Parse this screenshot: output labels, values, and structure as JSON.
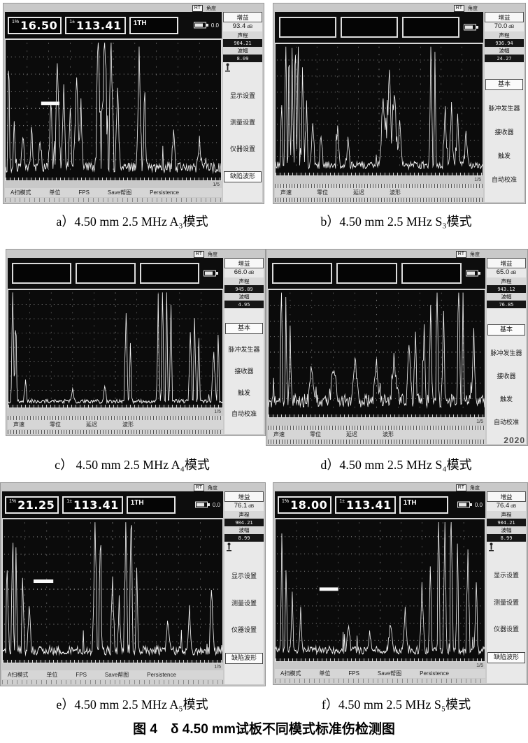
{
  "colors": {
    "scope_bg": "#0b0b0b",
    "trace": "#f2f2f2",
    "panel_frame": "#c9c9c9"
  },
  "captions": [
    "a）4.50 mm 2.5 MHz A₃模式",
    "b）4.50 mm 2.5 MHz S₃模式",
    "c） 4.50 mm 2.5 MHz A₄模式",
    "d）4.50 mm 2.5 MHz S₄模式",
    "e）4.50 mm 2.5 MHz A₅模式",
    "f）4.50 mm 2.5 MHz S₅模式"
  ],
  "title": "图 4　δ 4.50 mm试板不同模式标准伤检测图",
  "panels": [
    {
      "id": "a",
      "style": "A",
      "corner": {
        "box": "RT",
        "label": "角度"
      },
      "topbar": {
        "boxes": [
          {
            "prefix": "1%",
            "value": "16.50"
          },
          {
            "prefix": "1±",
            "value": "113.41"
          }
        ],
        "channel": "1TH",
        "small_value": "0.0"
      },
      "gain": {
        "label": "增益",
        "value": "93.4",
        "unit": "dB"
      },
      "readouts": [
        {
          "label": "声程",
          "value": "904.21"
        },
        {
          "label": "波幅",
          "value": "8.09"
        }
      ],
      "menu": {
        "items": [
          "显示设置",
          "测量设置",
          "仪器设置",
          "缺陷波形"
        ],
        "active": 3
      },
      "softkeys": [
        "A扫模式",
        "单位",
        "FPS",
        "Save帮图",
        "Persistence"
      ],
      "page_indicator": "1/5",
      "waveform": {
        "noise": 0.11,
        "peaks": [
          [
            0.015,
            1,
            0.006
          ],
          [
            0.04,
            0.35,
            0.01
          ],
          [
            0.08,
            0.25,
            0.012
          ],
          [
            0.12,
            0.3,
            0.01
          ],
          [
            0.16,
            0.22,
            0.01
          ],
          [
            0.21,
            0.5,
            0.012
          ],
          [
            0.24,
            0.78,
            0.014
          ],
          [
            0.27,
            0.6,
            0.012
          ],
          [
            0.3,
            0.45,
            0.01
          ],
          [
            0.33,
            0.7,
            0.012
          ],
          [
            0.35,
            0.5,
            0.01
          ],
          [
            0.43,
            1.05,
            0.014
          ],
          [
            0.46,
            1.1,
            0.016
          ],
          [
            0.49,
            1.05,
            0.012
          ],
          [
            0.52,
            0.6,
            0.01
          ],
          [
            0.62,
            0.92,
            0.01
          ],
          [
            0.645,
            0.7,
            0.008
          ],
          [
            0.78,
            0.28,
            0.01
          ],
          [
            0.9,
            0.2,
            0.012
          ]
        ],
        "gate": [
          0.165,
          0.44,
          0.085
        ]
      }
    },
    {
      "id": "b",
      "style": "B",
      "corner": {
        "box": "RT",
        "label": "角度"
      },
      "gain": {
        "label": "增益",
        "value": "70.0",
        "unit": "dB"
      },
      "readouts": [
        {
          "label": "声程",
          "value": "936.94"
        },
        {
          "label": "波幅",
          "value": "24.27"
        }
      ],
      "menu": {
        "items": [
          "基本",
          "脉冲发生器",
          "接收器",
          "触发",
          "自动校准"
        ],
        "active": 0
      },
      "softkeys": [
        "声速",
        "零位",
        "延迟",
        "波形"
      ],
      "page_indicator": "1/5",
      "waveform": {
        "noise": 0.09,
        "peaks": [
          [
            0.03,
            0.5,
            0.008
          ],
          [
            0.05,
            1.1,
            0.007
          ],
          [
            0.065,
            1.1,
            0.006
          ],
          [
            0.08,
            0.9,
            0.007
          ],
          [
            0.095,
            1.1,
            0.006
          ],
          [
            0.11,
            1.05,
            0.007
          ],
          [
            0.13,
            0.8,
            0.008
          ],
          [
            0.15,
            0.5,
            0.008
          ],
          [
            0.18,
            0.35,
            0.01
          ],
          [
            0.22,
            0.25,
            0.012
          ],
          [
            0.3,
            0.3,
            0.01
          ],
          [
            0.35,
            0.2,
            0.01
          ],
          [
            0.52,
            0.55,
            0.02
          ],
          [
            0.55,
            0.75,
            0.018
          ],
          [
            0.575,
            0.6,
            0.015
          ],
          [
            0.6,
            0.35,
            0.015
          ],
          [
            0.75,
            1.1,
            0.008
          ],
          [
            0.77,
            0.9,
            0.006
          ],
          [
            0.82,
            0.45,
            0.012
          ],
          [
            0.85,
            0.5,
            0.01
          ],
          [
            0.88,
            0.4,
            0.012
          ],
          [
            0.92,
            0.3,
            0.012
          ]
        ],
        "gate": null
      }
    },
    {
      "id": "c",
      "style": "B",
      "corner": {
        "box": "RT",
        "label": "角度"
      },
      "gain": {
        "label": "增益",
        "value": "66.0",
        "unit": "dB"
      },
      "readouts": [
        {
          "label": "声程",
          "value": "945.89"
        },
        {
          "label": "波幅",
          "value": "4.95"
        }
      ],
      "menu": {
        "items": [
          "基本",
          "脉冲发生器",
          "接收器",
          "触发",
          "自动校准"
        ],
        "active": 0
      },
      "softkeys": [
        "声速",
        "零位",
        "延迟",
        "波形"
      ],
      "page_indicator": "1/5",
      "waveform": {
        "noise": 0.05,
        "peaks": [
          [
            0.02,
            1.1,
            0.007
          ],
          [
            0.035,
            0.8,
            0.006
          ],
          [
            0.08,
            0.2,
            0.01
          ],
          [
            0.3,
            0.12,
            0.01
          ],
          [
            0.45,
            0.15,
            0.01
          ],
          [
            0.55,
            0.78,
            0.01
          ],
          [
            0.57,
            0.5,
            0.008
          ],
          [
            0.7,
            0.95,
            0.008
          ],
          [
            0.72,
            1.1,
            0.008
          ],
          [
            0.74,
            1.05,
            0.007
          ],
          [
            0.76,
            0.85,
            0.007
          ],
          [
            0.85,
            0.6,
            0.009
          ],
          [
            0.87,
            0.75,
            0.008
          ],
          [
            0.89,
            0.55,
            0.008
          ],
          [
            0.96,
            0.45,
            0.01
          ],
          [
            0.98,
            0.6,
            0.008
          ]
        ],
        "gate": null
      }
    },
    {
      "id": "d",
      "style": "B",
      "corner": {
        "box": "RT",
        "label": "角度"
      },
      "gain": {
        "label": "增益",
        "value": "65.0",
        "unit": "dB"
      },
      "readouts": [
        {
          "label": "声程",
          "value": "943.12"
        },
        {
          "label": "波幅",
          "value": "76.85"
        }
      ],
      "menu": {
        "items": [
          "基本",
          "脉冲发生器",
          "接收器",
          "触发",
          "自动校准"
        ],
        "active": 0
      },
      "softkeys": [
        "声速",
        "零位",
        "延迟",
        "波形"
      ],
      "page_indicator": "1/5",
      "watermark": "2020",
      "waveform": {
        "noise": 0.17,
        "peaks": [
          [
            0.06,
            1.1,
            0.007
          ],
          [
            0.08,
            0.85,
            0.006
          ],
          [
            0.1,
            0.6,
            0.007
          ],
          [
            0.2,
            0.3,
            0.02
          ],
          [
            0.3,
            0.28,
            0.02
          ],
          [
            0.4,
            0.32,
            0.02
          ],
          [
            0.5,
            0.3,
            0.02
          ],
          [
            0.58,
            0.35,
            0.02
          ],
          [
            0.65,
            0.5,
            0.012
          ],
          [
            0.68,
            0.55,
            0.01
          ],
          [
            0.72,
            0.65,
            0.01
          ],
          [
            0.75,
            0.8,
            0.009
          ],
          [
            0.78,
            0.95,
            0.008
          ],
          [
            0.81,
            0.75,
            0.008
          ],
          [
            0.88,
            1.1,
            0.008
          ],
          [
            0.9,
            0.9,
            0.007
          ],
          [
            0.95,
            0.55,
            0.01
          ]
        ],
        "gate": null
      }
    },
    {
      "id": "e",
      "style": "A",
      "corner": {
        "box": "RT",
        "label": "角度"
      },
      "topbar": {
        "boxes": [
          {
            "prefix": "1%",
            "value": "21.25"
          },
          {
            "prefix": "1±",
            "value": "113.41"
          }
        ],
        "channel": "1TH",
        "small_value": "0.0"
      },
      "gain": {
        "label": "增益",
        "value": "76.1",
        "unit": "dB"
      },
      "readouts": [
        {
          "label": "声程",
          "value": "904.21"
        },
        {
          "label": "波幅",
          "value": "8.99"
        }
      ],
      "menu": {
        "items": [
          "显示设置",
          "测量设置",
          "仪器设置",
          "缺陷波形"
        ],
        "active": 3
      },
      "softkeys": [
        "A扫模式",
        "单位",
        "FPS",
        "Save帮图",
        "Persistence"
      ],
      "page_indicator": "1/5",
      "waveform": {
        "noise": 0.1,
        "peaks": [
          [
            0.02,
            0.6,
            0.008
          ],
          [
            0.045,
            0.95,
            0.007
          ],
          [
            0.06,
            0.75,
            0.006
          ],
          [
            0.09,
            0.5,
            0.008
          ],
          [
            0.12,
            0.35,
            0.01
          ],
          [
            0.42,
            1.1,
            0.01
          ],
          [
            0.445,
            0.95,
            0.008
          ],
          [
            0.5,
            0.55,
            0.009
          ],
          [
            0.53,
            0.4,
            0.008
          ],
          [
            0.56,
            1.05,
            0.008
          ],
          [
            0.585,
            1.1,
            0.008
          ],
          [
            0.61,
            0.6,
            0.008
          ],
          [
            0.75,
            0.2,
            0.012
          ],
          [
            0.85,
            0.3,
            0.01
          ],
          [
            0.95,
            0.45,
            0.012
          ]
        ],
        "gate": [
          0.14,
          0.42,
          0.09
        ]
      }
    },
    {
      "id": "f",
      "style": "A",
      "corner": {
        "box": "RT",
        "label": "角度"
      },
      "topbar": {
        "boxes": [
          {
            "prefix": "1%",
            "value": "18.00"
          },
          {
            "prefix": "1±",
            "value": "113.41"
          }
        ],
        "channel": "1TH",
        "small_value": "0.0"
      },
      "gain": {
        "label": "增益",
        "value": "76.4",
        "unit": "dB"
      },
      "readouts": [
        {
          "label": "声程",
          "value": "904.21"
        },
        {
          "label": "波幅",
          "value": "8.99"
        }
      ],
      "menu": {
        "items": [
          "显示设置",
          "测量设置",
          "仪器设置",
          "缺陷波形"
        ],
        "active": 3
      },
      "softkeys": [
        "A扫模式",
        "单位",
        "FPS",
        "Save帮图",
        "Persistence"
      ],
      "page_indicator": "1/5",
      "waveform": {
        "noise": 0.09,
        "peaks": [
          [
            0.03,
            0.85,
            0.008
          ],
          [
            0.05,
            0.6,
            0.007
          ],
          [
            0.08,
            0.4,
            0.008
          ],
          [
            0.12,
            0.3,
            0.01
          ],
          [
            0.35,
            0.18,
            0.012
          ],
          [
            0.45,
            0.15,
            0.01
          ],
          [
            0.55,
            0.2,
            0.012
          ],
          [
            0.62,
            0.3,
            0.012
          ],
          [
            0.7,
            0.5,
            0.012
          ],
          [
            0.74,
            0.6,
            0.01
          ],
          [
            0.78,
            1.05,
            0.009
          ],
          [
            0.81,
            0.95,
            0.008
          ],
          [
            0.84,
            1.1,
            0.008
          ],
          [
            0.87,
            0.8,
            0.008
          ],
          [
            0.92,
            0.75,
            0.009
          ],
          [
            0.96,
            0.5,
            0.01
          ]
        ],
        "gate": [
          0.21,
          0.48,
          0.09
        ]
      }
    }
  ]
}
